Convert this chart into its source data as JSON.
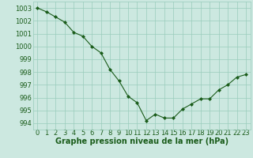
{
  "x": [
    0,
    1,
    2,
    3,
    4,
    5,
    6,
    7,
    8,
    9,
    10,
    11,
    12,
    13,
    14,
    15,
    16,
    17,
    18,
    19,
    20,
    21,
    22,
    23
  ],
  "y": [
    1003.0,
    1002.7,
    1002.3,
    1001.9,
    1001.1,
    1000.8,
    1000.0,
    999.5,
    998.2,
    997.3,
    996.1,
    995.6,
    994.2,
    994.7,
    994.4,
    994.4,
    995.1,
    995.5,
    995.9,
    995.9,
    996.6,
    997.0,
    997.6,
    997.8
  ],
  "line_color": "#1a5c1a",
  "marker": "D",
  "marker_size": 2,
  "bg_color": "#cce8e0",
  "grid_color": "#99ccbb",
  "xlabel": "Graphe pression niveau de la mer (hPa)",
  "xlabel_fontsize": 7,
  "xlabel_color": "#1a5c1a",
  "tick_color": "#1a5c1a",
  "tick_fontsize": 6,
  "ylim": [
    993.5,
    1003.5
  ],
  "xlim": [
    -0.5,
    23.5
  ],
  "yticks": [
    994,
    995,
    996,
    997,
    998,
    999,
    1000,
    1001,
    1002,
    1003
  ],
  "xticks": [
    0,
    1,
    2,
    3,
    4,
    5,
    6,
    7,
    8,
    9,
    10,
    11,
    12,
    13,
    14,
    15,
    16,
    17,
    18,
    19,
    20,
    21,
    22,
    23
  ]
}
